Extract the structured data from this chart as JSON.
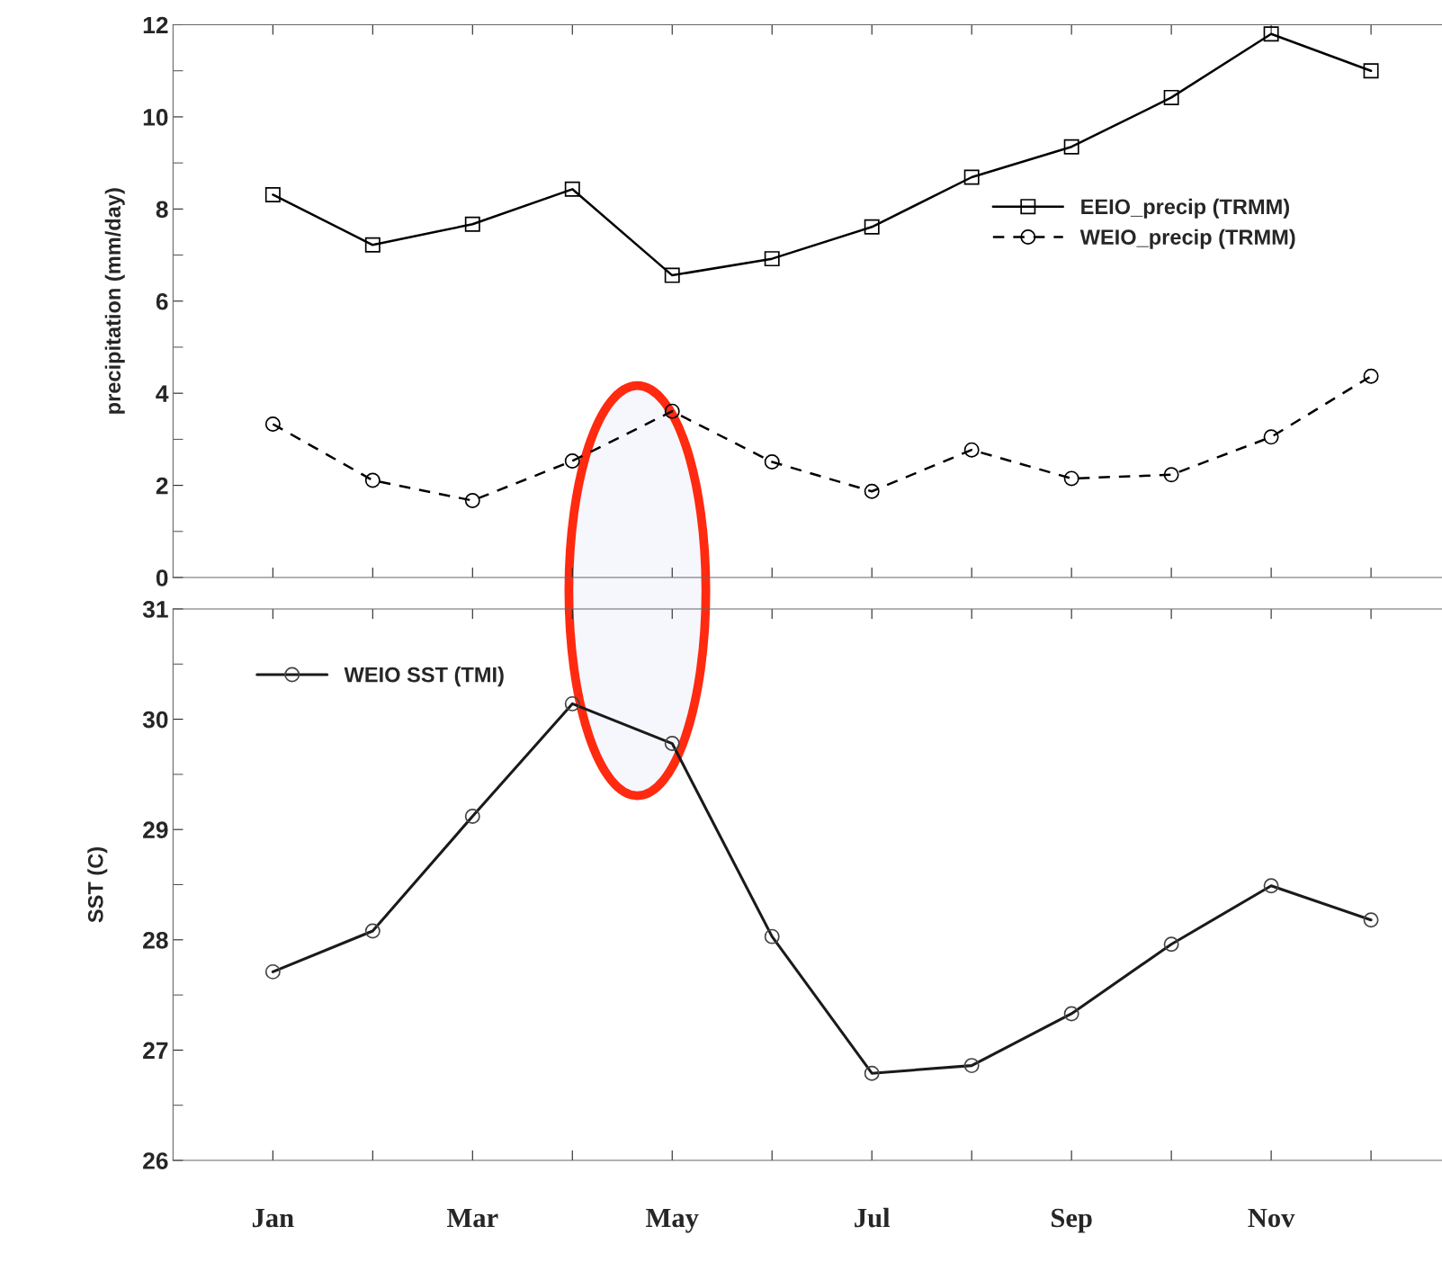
{
  "chart_data": [
    {
      "type": "line",
      "ylabel": "precipitation (mm/day)",
      "categories": [
        null,
        null,
        null,
        null,
        null,
        null,
        null,
        null,
        null,
        null,
        null,
        null
      ],
      "series": [
        {
          "name": "EEIO_precip (TRMM)",
          "color": "#000000",
          "marker": "square",
          "line_style": "solid",
          "values": [
            8.31,
            7.22,
            7.67,
            8.43,
            6.56,
            6.92,
            7.61,
            8.69,
            9.35,
            10.42,
            11.8,
            11.0
          ]
        },
        {
          "name": "WEIO_precip (TRMM)",
          "color": "#000000",
          "marker": "circle",
          "line_style": "dashed",
          "values": [
            3.33,
            2.11,
            1.67,
            2.53,
            3.61,
            2.51,
            1.87,
            2.77,
            2.15,
            2.23,
            3.05,
            4.37
          ]
        }
      ],
      "ylim": [
        0,
        12
      ],
      "yticks": [
        0,
        2,
        4,
        6,
        8,
        10,
        12
      ],
      "grid": false,
      "legend": "right",
      "tick_labels": "y"
    },
    {
      "type": "line",
      "ylabel": "SST (C)",
      "categories": [
        "Jan",
        null,
        "Mar",
        null,
        "May",
        null,
        "Jul",
        null,
        "Sep",
        null,
        "Nov",
        null
      ],
      "series": [
        {
          "name": "WEIO SST (TMI)",
          "color": "#1a1a1a",
          "marker": "circle",
          "line_style": "solid",
          "values": [
            27.71,
            28.08,
            29.12,
            30.14,
            29.78,
            28.03,
            26.79,
            26.86,
            27.33,
            27.96,
            28.49,
            28.18
          ]
        }
      ],
      "ylim": [
        26,
        31
      ],
      "yticks": [
        26,
        27,
        28,
        29,
        30,
        31
      ],
      "grid": false,
      "legend": "top left"
    }
  ]
}
